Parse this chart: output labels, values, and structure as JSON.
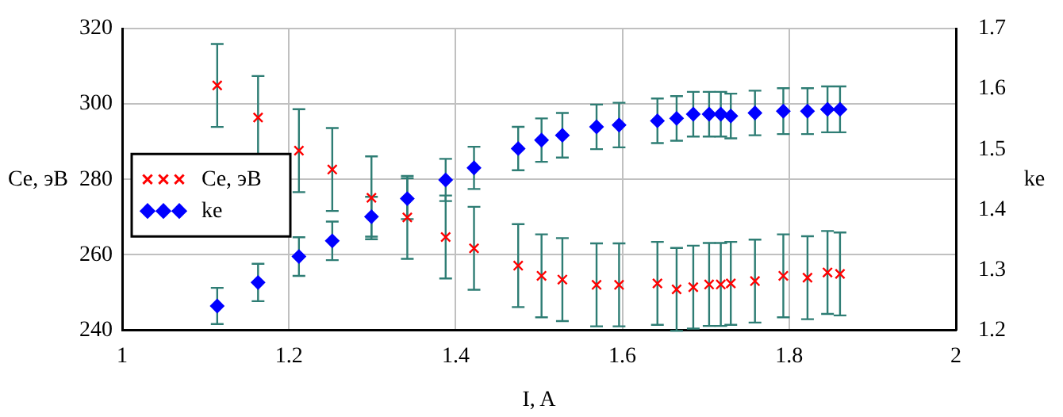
{
  "chart_data": {
    "type": "scatter",
    "xlabel": "I, A",
    "ylabel": "Ce, эВ",
    "y2label": "ke",
    "x": [
      1.114,
      1.163,
      1.212,
      1.252,
      1.299,
      1.342,
      1.388,
      1.422,
      1.475,
      1.503,
      1.528,
      1.569,
      1.596,
      1.642,
      1.665,
      1.685,
      1.704,
      1.718,
      1.73,
      1.759,
      1.793,
      1.822,
      1.846,
      1.861
    ],
    "series": [
      {
        "name": "Ce, эВ",
        "color": "#ff0000",
        "marker": "cross",
        "values": [
          304.9,
          296.4,
          287.6,
          282.6,
          275.1,
          269.9,
          264.7,
          261.7,
          257.1,
          254.4,
          253.4,
          252.0,
          252.0,
          252.4,
          250.8,
          251.4,
          252.1,
          252.1,
          252.4,
          253.0,
          254.4,
          253.9,
          255.3,
          254.9
        ],
        "errors": [
          11,
          11,
          11,
          11,
          11,
          11,
          11,
          11,
          11,
          11,
          11,
          11,
          11,
          11,
          11,
          11,
          11,
          11,
          11,
          11,
          11,
          11,
          11,
          11
        ]
      },
      {
        "name": "ke",
        "color": "#0000ff",
        "marker": "diamond",
        "axis": "y2",
        "values": [
          1.24,
          1.279,
          1.322,
          1.348,
          1.388,
          1.418,
          1.449,
          1.469,
          1.501,
          1.515,
          1.523,
          1.537,
          1.54,
          1.547,
          1.551,
          1.558,
          1.558,
          1.558,
          1.555,
          1.56,
          1.563,
          1.563,
          1.566,
          1.566
        ],
        "errors": [
          0.03,
          0.031,
          0.032,
          0.032,
          0.033,
          0.034,
          0.035,
          0.035,
          0.036,
          0.036,
          0.037,
          0.037,
          0.037,
          0.037,
          0.037,
          0.037,
          0.037,
          0.037,
          0.037,
          0.037,
          0.038,
          0.038,
          0.038,
          0.038
        ]
      }
    ],
    "xlim": [
      1,
      2
    ],
    "xticks": [
      1,
      1.2,
      1.4,
      1.6,
      1.8,
      2
    ],
    "ylim": [
      240,
      320
    ],
    "yticks": [
      240,
      260,
      280,
      300,
      320
    ],
    "y2lim": [
      1.2,
      1.7
    ],
    "y2ticks": [
      1.2,
      1.3,
      1.4,
      1.5,
      1.6,
      1.7
    ],
    "grid": true,
    "legend": "left"
  }
}
